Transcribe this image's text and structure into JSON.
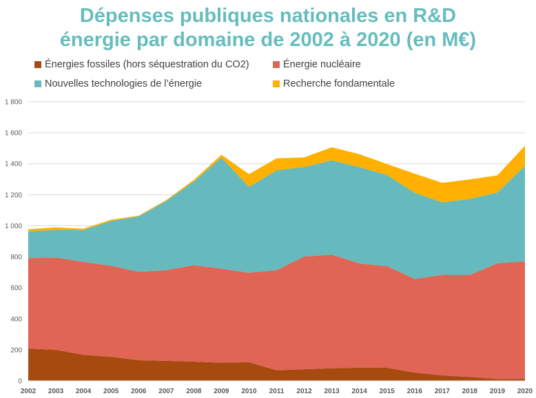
{
  "chart_data": {
    "type": "area",
    "stacked": true,
    "title": "Dépenses publiques nationales en R&D énergie par domaine de 2002 à 2020 (en M€)",
    "title_lines": [
      "Dépenses publiques nationales en R&D",
      "énergie par domaine de 2002 à 2020 (en M€)"
    ],
    "xlabel": "",
    "ylabel": "",
    "ylim": [
      0,
      1800
    ],
    "yticks": [
      0,
      200,
      400,
      600,
      800,
      1000,
      1200,
      1400,
      1600,
      1800
    ],
    "ytick_labels": [
      "0",
      "200",
      "400",
      "600",
      "800",
      "1 000",
      "1 200",
      "1 400",
      "1 600",
      "1 800"
    ],
    "grid": true,
    "legend_position": "top",
    "categories": [
      "2002",
      "2003",
      "2004",
      "2005",
      "2006",
      "2007",
      "2008",
      "2009",
      "2010",
      "2011",
      "2012",
      "2013",
      "2014",
      "2015",
      "2016",
      "2017",
      "2018",
      "2019",
      "2020"
    ],
    "series": [
      {
        "name": "Énergies fossiles (hors séquestration du CO2)",
        "color": "#A64A10",
        "values": [
          208,
          200,
          168,
          155,
          133,
          129,
          124,
          117,
          120,
          68,
          75,
          81,
          85,
          84,
          53,
          35,
          25,
          12,
          13
        ]
      },
      {
        "name": "Énergie nucléaire",
        "color": "#E06555",
        "values": [
          584,
          595,
          599,
          587,
          570,
          585,
          622,
          606,
          577,
          646,
          727,
          733,
          672,
          656,
          604,
          648,
          658,
          746,
          758
        ]
      },
      {
        "name": "Nouvelles technologies de l’énergie",
        "color": "#66B9BC",
        "values": [
          171,
          179,
          205,
          289,
          358,
          446,
          540,
          716,
          554,
          644,
          577,
          608,
          621,
          588,
          556,
          468,
          490,
          457,
          616
        ]
      },
      {
        "name": "Recherche fondamentale",
        "color": "#FFB000",
        "values": [
          14,
          16,
          9,
          8,
          4,
          6,
          10,
          19,
          82,
          77,
          62,
          84,
          84,
          70,
          123,
          126,
          126,
          110,
          129
        ]
      }
    ]
  },
  "legend": [
    {
      "label": "Énergies fossiles (hors séquestration du CO2)",
      "color": "#A64A10"
    },
    {
      "label": "Énergie nucléaire",
      "color": "#E06555"
    },
    {
      "label": "Nouvelles technologies de l’énergie",
      "color": "#66B9BC"
    },
    {
      "label": "Recherche fondamentale",
      "color": "#FFB000"
    }
  ],
  "colors": {
    "title": "#67BCBE",
    "grid": "#D9D9D9",
    "tick_text": "#595959"
  }
}
